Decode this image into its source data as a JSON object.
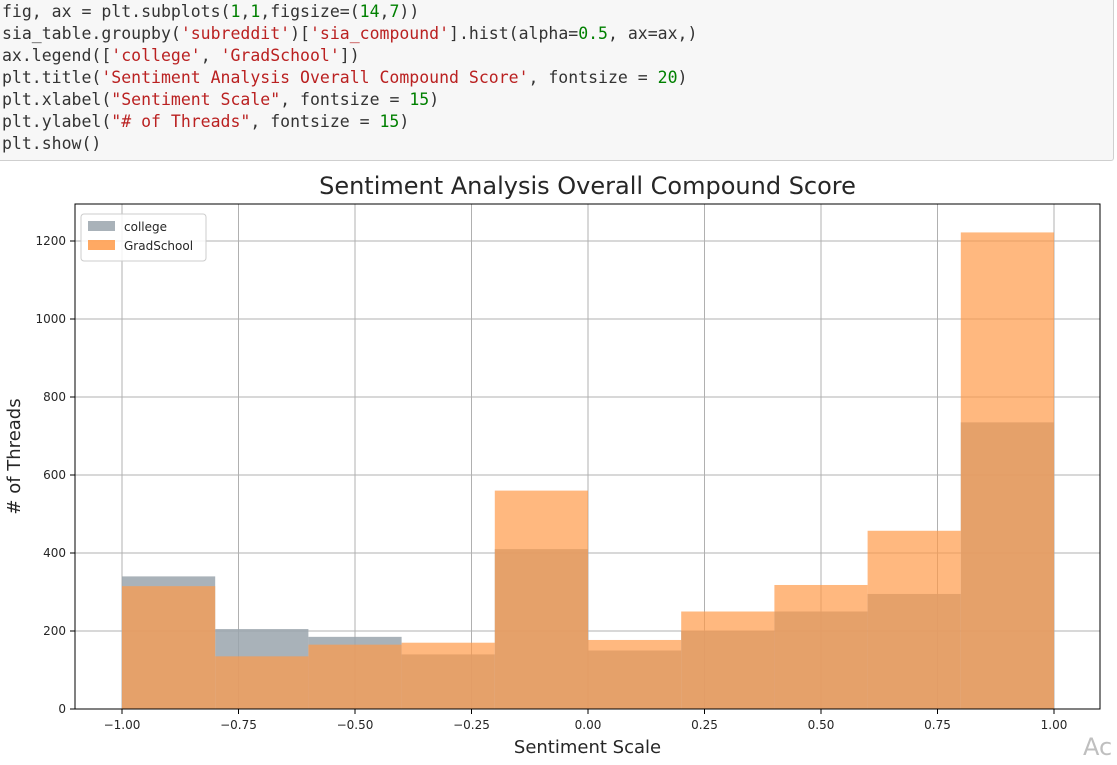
{
  "code_cell": {
    "lines": [
      [
        {
          "t": "fig, ax = plt.subplots(",
          "k": "plain"
        },
        {
          "t": "1",
          "k": "num"
        },
        {
          "t": ",",
          "k": "plain"
        },
        {
          "t": "1",
          "k": "num"
        },
        {
          "t": ",figsize=(",
          "k": "plain"
        },
        {
          "t": "14",
          "k": "num"
        },
        {
          "t": ",",
          "k": "plain"
        },
        {
          "t": "7",
          "k": "num"
        },
        {
          "t": "))",
          "k": "plain"
        }
      ],
      [
        {
          "t": "sia_table.groupby(",
          "k": "plain"
        },
        {
          "t": "'subreddit'",
          "k": "str"
        },
        {
          "t": ")[",
          "k": "plain"
        },
        {
          "t": "'sia_compound'",
          "k": "str"
        },
        {
          "t": "].hist(alpha=",
          "k": "plain"
        },
        {
          "t": "0.5",
          "k": "num"
        },
        {
          "t": ", ax=ax,)",
          "k": "plain"
        }
      ],
      [
        {
          "t": "ax.legend([",
          "k": "plain"
        },
        {
          "t": "'college'",
          "k": "str"
        },
        {
          "t": ", ",
          "k": "plain"
        },
        {
          "t": "'GradSchool'",
          "k": "str"
        },
        {
          "t": "])",
          "k": "plain"
        }
      ],
      [
        {
          "t": "plt.title(",
          "k": "plain"
        },
        {
          "t": "'Sentiment Analysis Overall Compound Score'",
          "k": "str"
        },
        {
          "t": ", fontsize = ",
          "k": "plain"
        },
        {
          "t": "20",
          "k": "num"
        },
        {
          "t": ")",
          "k": "plain"
        }
      ],
      [
        {
          "t": "plt.xlabel(",
          "k": "plain"
        },
        {
          "t": "\"Sentiment Scale\"",
          "k": "str"
        },
        {
          "t": ", fontsize = ",
          "k": "plain"
        },
        {
          "t": "15",
          "k": "num"
        },
        {
          "t": ")",
          "k": "plain"
        }
      ],
      [
        {
          "t": "plt.ylabel(",
          "k": "plain"
        },
        {
          "t": "\"# of Threads\"",
          "k": "str"
        },
        {
          "t": ", fontsize = ",
          "k": "plain"
        },
        {
          "t": "15",
          "k": "num"
        },
        {
          "t": ")",
          "k": "plain"
        }
      ],
      [
        {
          "t": "plt.show()",
          "k": "plain"
        }
      ]
    ]
  },
  "colors": {
    "code_string": "#ba2121",
    "code_number": "#008000",
    "code_text": "#333333",
    "series_college": "#9aa5ad",
    "series_gradschool": "#ff9a48",
    "overlap": "#c49a73",
    "grid": "#b0b0b0"
  },
  "watermark_text": "Ac",
  "chart_data": {
    "type": "bar",
    "title": "Sentiment Analysis Overall Compound Score",
    "xlabel": "Sentiment Scale",
    "ylabel": "# of Threads",
    "xlim": [
      -1.0,
      1.0
    ],
    "ylim": [
      0,
      1280
    ],
    "xticks": [
      -1.0,
      -0.75,
      -0.5,
      -0.25,
      0.0,
      0.25,
      0.5,
      0.75,
      1.0
    ],
    "xtick_labels": [
      "−1.00",
      "−0.75",
      "−0.50",
      "−0.25",
      "0.00",
      "0.25",
      "0.50",
      "0.75",
      "1.00"
    ],
    "yticks": [
      0,
      200,
      400,
      600,
      800,
      1000,
      1200
    ],
    "ytick_labels": [
      "0",
      "200",
      "400",
      "600",
      "800",
      "1000",
      "1200"
    ],
    "grid": true,
    "legend_position": "top-left",
    "bin_edges": [
      -1.0,
      -0.8,
      -0.6,
      -0.4,
      -0.2,
      0.0,
      0.2,
      0.4,
      0.6,
      0.8,
      1.0
    ],
    "series": [
      {
        "name": "college",
        "values": [
          340,
          205,
          185,
          140,
          410,
          150,
          200,
          250,
          295,
          735
        ]
      },
      {
        "name": "GradSchool",
        "values": [
          315,
          135,
          165,
          170,
          560,
          177,
          250,
          318,
          457,
          1222
        ]
      }
    ],
    "alpha": 0.5
  }
}
